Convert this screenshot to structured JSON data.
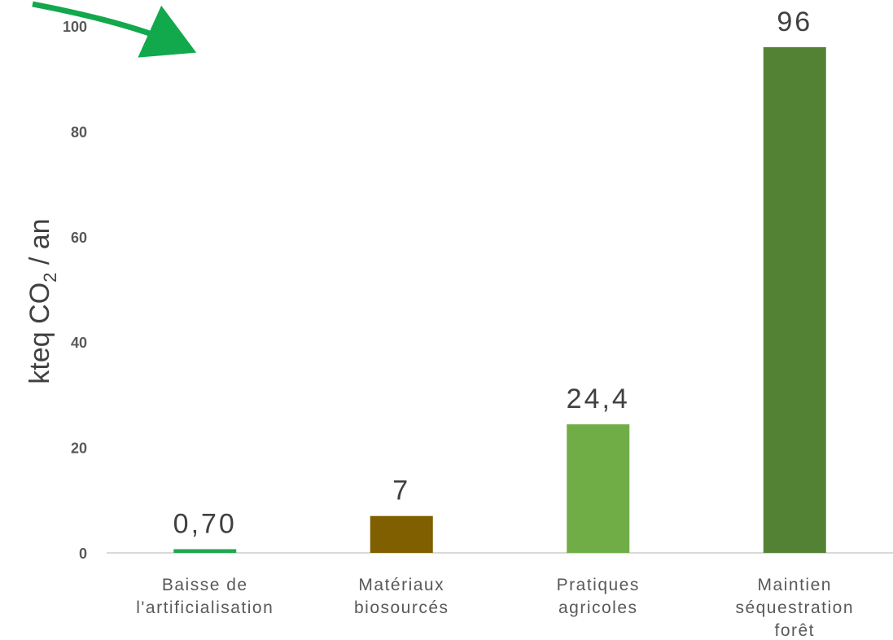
{
  "chart_data": {
    "type": "bar",
    "ylabel": "kteq CO",
    "ylabel_subscript": "2",
    "ylabel_suffix": " / an",
    "ylim": [
      0,
      100
    ],
    "yticks": [
      "0",
      "20",
      "40",
      "60",
      "80",
      "100"
    ],
    "categories": [
      [
        "Baisse de",
        "l'artificialisation"
      ],
      [
        "Matériaux",
        "biosourcés"
      ],
      [
        "Pratiques",
        "agricoles"
      ],
      [
        "Maintien",
        "séquestration",
        "forêt"
      ]
    ],
    "values": [
      0.7,
      7,
      24.4,
      96
    ],
    "data_labels": [
      "0,70",
      "7",
      "24,4",
      "96"
    ],
    "colors": [
      "#1fa84f",
      "#7f5f00",
      "#70ad47",
      "#548235"
    ],
    "arrow_color": "#12a84c"
  }
}
